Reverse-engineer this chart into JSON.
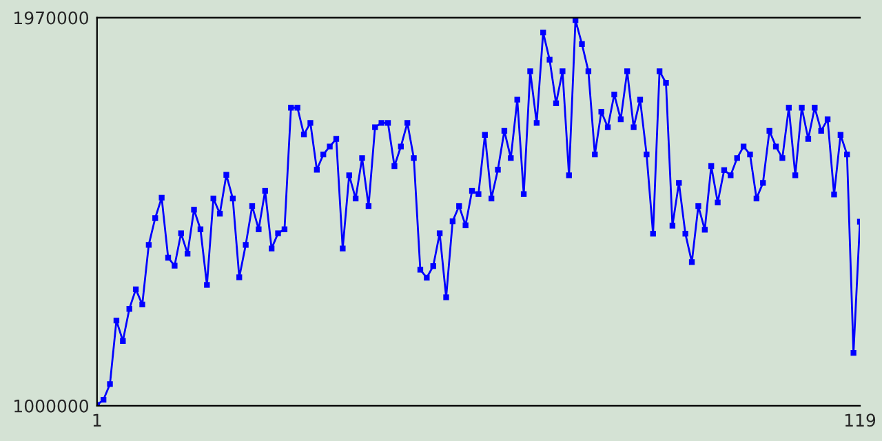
{
  "chart_data": {
    "type": "line",
    "marker": "square",
    "line_style": "solid",
    "grid": false,
    "x": [
      1,
      2,
      3,
      4,
      5,
      6,
      7,
      8,
      9,
      10,
      11,
      12,
      13,
      14,
      15,
      16,
      17,
      18,
      19,
      20,
      21,
      22,
      23,
      24,
      25,
      26,
      27,
      28,
      29,
      30,
      31,
      32,
      33,
      34,
      35,
      36,
      37,
      38,
      39,
      40,
      41,
      42,
      43,
      44,
      45,
      46,
      47,
      48,
      49,
      50,
      51,
      52,
      53,
      54,
      55,
      56,
      57,
      58,
      59,
      60,
      61,
      62,
      63,
      64,
      65,
      66,
      67,
      68,
      69,
      70,
      71,
      72,
      73,
      74,
      75,
      76,
      77,
      78,
      79,
      80,
      81,
      82,
      83,
      84,
      85,
      86,
      87,
      88,
      89,
      90,
      91,
      92,
      93,
      94,
      95,
      96,
      97,
      98,
      99,
      100,
      101,
      102,
      103,
      104,
      105,
      106,
      107,
      108,
      109,
      110,
      111,
      112,
      113,
      114,
      115,
      116,
      117,
      118,
      119
    ],
    "series": [
      {
        "color": "#0000ff",
        "values": [
          1002000,
          1015000,
          1054000,
          1213000,
          1162000,
          1242000,
          1291000,
          1253000,
          1402000,
          1469000,
          1520000,
          1370000,
          1350000,
          1431000,
          1380000,
          1490000,
          1441000,
          1302000,
          1518000,
          1480000,
          1577000,
          1518000,
          1321000,
          1402000,
          1499000,
          1441000,
          1537000,
          1393000,
          1431000,
          1441000,
          1745000,
          1745000,
          1678000,
          1707000,
          1590000,
          1628000,
          1648000,
          1667000,
          1393000,
          1576000,
          1518000,
          1619000,
          1499000,
          1696000,
          1707000,
          1707000,
          1599000,
          1648000,
          1707000,
          1619000,
          1340000,
          1320000,
          1349000,
          1431000,
          1271000,
          1461000,
          1499000,
          1451000,
          1537000,
          1529000,
          1677000,
          1518000,
          1590000,
          1687000,
          1619000,
          1765000,
          1529000,
          1836000,
          1707000,
          1933000,
          1865000,
          1756000,
          1836000,
          1576000,
          1964000,
          1904000,
          1836000,
          1628000,
          1735000,
          1696000,
          1778000,
          1716000,
          1836000,
          1696000,
          1765000,
          1628000,
          1430000,
          1836000,
          1807000,
          1450000,
          1557000,
          1430000,
          1359000,
          1499000,
          1440000,
          1599000,
          1508000,
          1589000,
          1576000,
          1619000,
          1648000,
          1628000,
          1518000,
          1557000,
          1687000,
          1648000,
          1619000,
          1745000,
          1576000,
          1745000,
          1667000,
          1745000,
          1687000,
          1716000,
          1528000,
          1677000,
          1628000,
          1132000,
          1460000
        ]
      }
    ],
    "xlim": [
      1,
      119
    ],
    "xticks": [
      1,
      119
    ],
    "ylim": [
      1000000,
      1970000
    ],
    "yticks": [
      1000000,
      1970000
    ]
  }
}
